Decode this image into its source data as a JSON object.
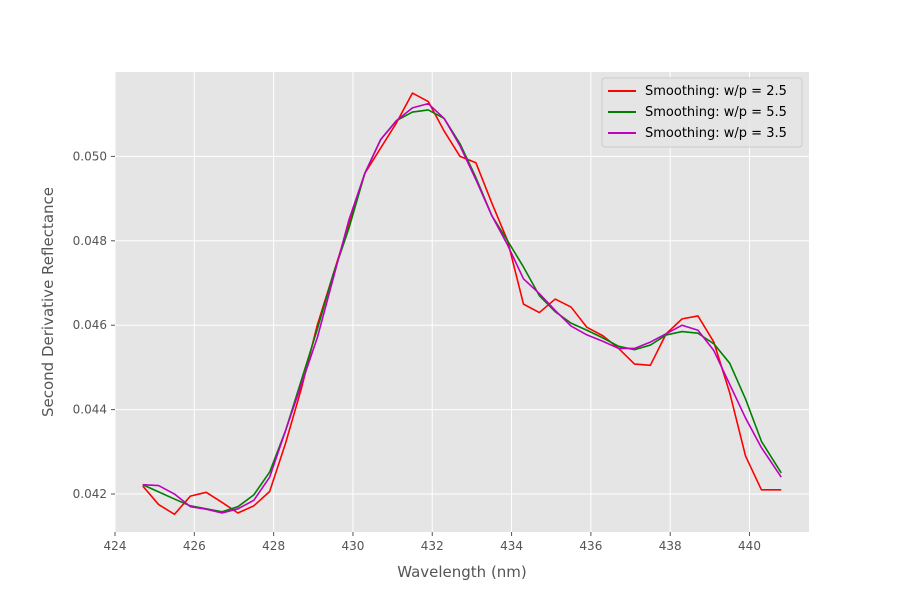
{
  "chart_data": {
    "type": "line",
    "title": "",
    "xlabel": "Wavelength (nm)",
    "ylabel": "Second Derivative Reflectance",
    "xlim": [
      424,
      441.5
    ],
    "ylim": [
      0.0411,
      0.052
    ],
    "xticks": [
      424,
      426,
      428,
      430,
      432,
      434,
      436,
      438,
      440
    ],
    "yticks": [
      0.042,
      0.044,
      0.046,
      0.048,
      0.05
    ],
    "xtick_labels": [
      "424",
      "426",
      "428",
      "430",
      "432",
      "434",
      "436",
      "438",
      "440"
    ],
    "ytick_labels": [
      "0.042",
      "0.044",
      "0.046",
      "0.048",
      "0.050"
    ],
    "grid": true,
    "legend_position": "top-right",
    "x": [
      424.7,
      425.1,
      425.5,
      425.9,
      426.3,
      426.7,
      427.1,
      427.5,
      427.9,
      428.3,
      428.7,
      429.1,
      429.5,
      429.9,
      430.3,
      430.7,
      431.1,
      431.5,
      431.9,
      432.3,
      432.7,
      433.1,
      433.5,
      433.9,
      434.3,
      434.7,
      435.1,
      435.5,
      435.9,
      436.3,
      436.7,
      437.1,
      437.5,
      437.9,
      438.3,
      438.7,
      439.1,
      439.5,
      439.9,
      440.3,
      440.8
    ],
    "series": [
      {
        "name": "Smoothing: w/p = 2.5",
        "color": "#ff0000",
        "values": [
          0.04219,
          0.04175,
          0.04152,
          0.04195,
          0.04204,
          0.0418,
          0.04155,
          0.04172,
          0.04206,
          0.0432,
          0.0445,
          0.046,
          0.0472,
          0.0484,
          0.0496,
          0.0502,
          0.0508,
          0.0515,
          0.0513,
          0.0506,
          0.05,
          0.04985,
          0.0489,
          0.048,
          0.0465,
          0.0463,
          0.04662,
          0.04643,
          0.04595,
          0.04575,
          0.04545,
          0.04508,
          0.04505,
          0.0458,
          0.04615,
          0.04622,
          0.0456,
          0.0444,
          0.0429,
          0.0421,
          0.0421
        ]
      },
      {
        "name": "Smoothing: w/p = 5.5",
        "color": "#008000",
        "values": [
          0.04222,
          0.04205,
          0.04188,
          0.04172,
          0.04165,
          0.04158,
          0.0417,
          0.04198,
          0.04252,
          0.0435,
          0.0447,
          0.0459,
          0.0472,
          0.0483,
          0.0496,
          0.0504,
          0.05085,
          0.05105,
          0.0511,
          0.0509,
          0.0503,
          0.0495,
          0.0486,
          0.048,
          0.04738,
          0.0467,
          0.04632,
          0.04605,
          0.04588,
          0.0457,
          0.0455,
          0.04542,
          0.04553,
          0.04577,
          0.04585,
          0.04581,
          0.04556,
          0.0451,
          0.04425,
          0.04325,
          0.0425
        ]
      },
      {
        "name": "Smoothing: w/p = 3.5",
        "color": "#bf00bf",
        "values": [
          0.04222,
          0.0422,
          0.042,
          0.0417,
          0.04164,
          0.04155,
          0.04165,
          0.04185,
          0.0424,
          0.0435,
          0.0446,
          0.0457,
          0.0471,
          0.0485,
          0.0496,
          0.0504,
          0.05085,
          0.05115,
          0.05125,
          0.0509,
          0.05025,
          0.04945,
          0.0486,
          0.0479,
          0.0471,
          0.04675,
          0.04635,
          0.04598,
          0.04577,
          0.04562,
          0.04545,
          0.04545,
          0.0456,
          0.0458,
          0.046,
          0.04588,
          0.0454,
          0.0446,
          0.0438,
          0.0431,
          0.0424
        ]
      }
    ]
  }
}
